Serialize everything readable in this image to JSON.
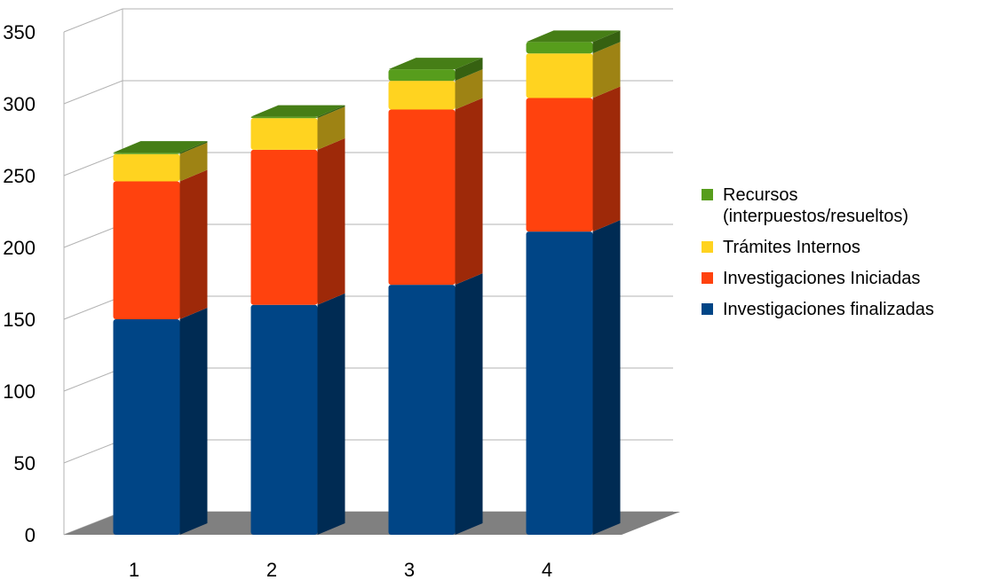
{
  "chart_data": {
    "type": "bar",
    "stacked": true,
    "style": "3d",
    "categories": [
      "1",
      "2",
      "3",
      "4"
    ],
    "series": [
      {
        "name": "Investigaciones finalizadas",
        "color": "#004586",
        "values": [
          150,
          160,
          174,
          211
        ]
      },
      {
        "name": "Investigaciones Iniciadas",
        "color": "#ff420e",
        "values": [
          96,
          108,
          122,
          93
        ]
      },
      {
        "name": "Trámites Internos",
        "color": "#ffd320",
        "values": [
          19,
          22,
          20,
          31
        ]
      },
      {
        "name": "Recursos (interpuestos/resueltos)",
        "color": "#579d1c",
        "values": [
          1,
          1,
          8,
          8
        ]
      }
    ],
    "ylim": [
      0,
      350
    ],
    "yticks": [
      0,
      50,
      100,
      150,
      200,
      250,
      300,
      350
    ],
    "grid": true,
    "legend_position": "right",
    "title": "",
    "xlabel": "",
    "ylabel": ""
  }
}
